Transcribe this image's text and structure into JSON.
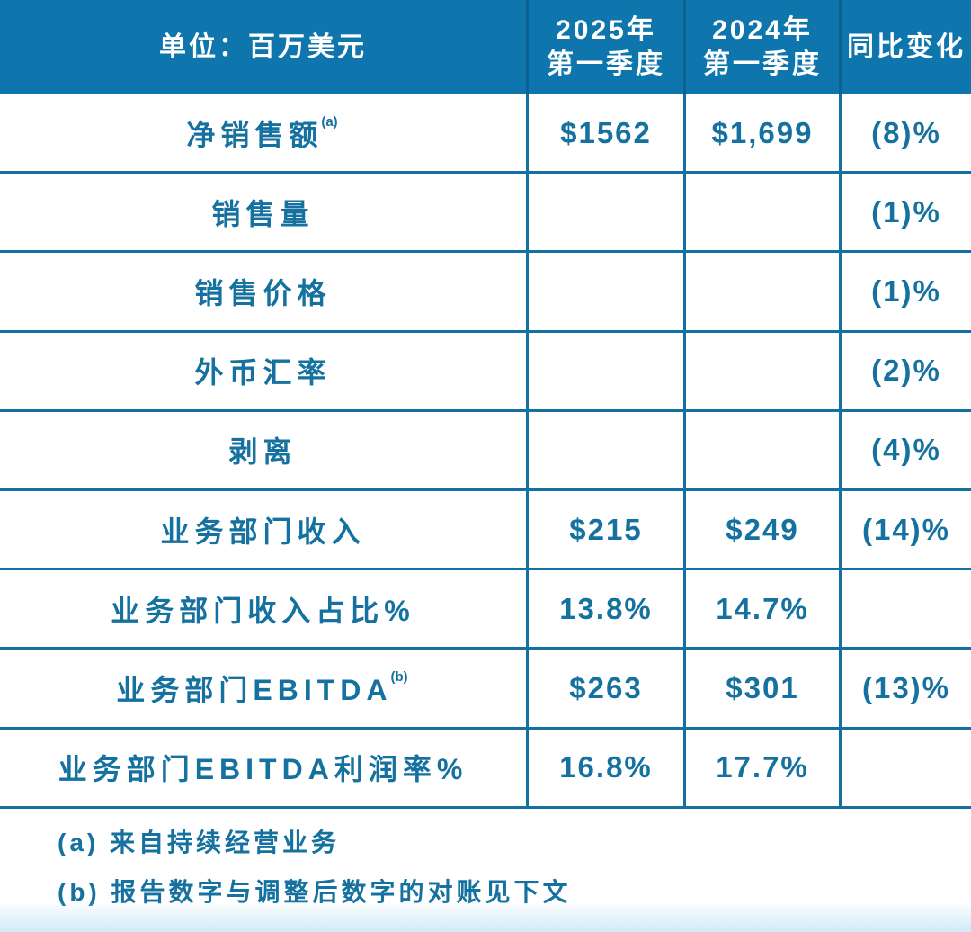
{
  "colors": {
    "header_bg": "#0e76ad",
    "header_sep": "#0b6191",
    "text_blue": "#15719f",
    "border": "#1470a0",
    "bottom_tint": "#cfeaf6"
  },
  "chart_data": {
    "type": "table",
    "title": "单位：百万美元",
    "unit_label": "单位：百万美元",
    "columns": [
      "2025年\n第一季度",
      "2024年\n第一季度",
      "同比变化"
    ],
    "rows": [
      {
        "label": "净销售额",
        "sup": "(a)",
        "q1_2025": "$1562",
        "q1_2024": "$1,699",
        "yoy": "(8)%"
      },
      {
        "label": "销售量",
        "q1_2025": "",
        "q1_2024": "",
        "yoy": "(1)%"
      },
      {
        "label": "销售价格",
        "q1_2025": "",
        "q1_2024": "",
        "yoy": "(1)%"
      },
      {
        "label": "外币汇率",
        "q1_2025": "",
        "q1_2024": "",
        "yoy": "(2)%"
      },
      {
        "label": "剥离",
        "q1_2025": "",
        "q1_2024": "",
        "yoy": "(4)%"
      },
      {
        "label": "业务部门收入",
        "q1_2025": "$215",
        "q1_2024": "$249",
        "yoy": "(14)%"
      },
      {
        "label": "业务部门收入占比%",
        "q1_2025": "13.8%",
        "q1_2024": "14.7%",
        "yoy": ""
      },
      {
        "label": "业务部门EBITDA",
        "sup": "(b)",
        "q1_2025": "$263",
        "q1_2024": "$301",
        "yoy": "(13)%"
      },
      {
        "label": "业务部门EBITDA利润率%",
        "q1_2025": "16.8%",
        "q1_2024": "17.7%",
        "yoy": ""
      }
    ],
    "footnotes": [
      "(a) 来自持续经营业务",
      "(b) 报告数字与调整后数字的对账见下文"
    ]
  }
}
